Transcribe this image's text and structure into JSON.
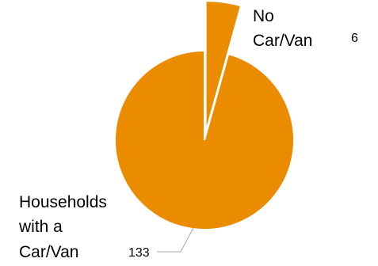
{
  "chart_data": {
    "type": "pie",
    "title": "",
    "exploded": true,
    "legend": "none",
    "slices": [
      {
        "label_lines": [
          "No",
          "Car/Van"
        ],
        "value": 6,
        "color": "#EB8C00"
      },
      {
        "label_lines": [
          "Households",
          "with a",
          "Car/Van"
        ],
        "value": 133,
        "color": "#EB8C00"
      }
    ],
    "leader_line_color": "#A6A6A6"
  }
}
